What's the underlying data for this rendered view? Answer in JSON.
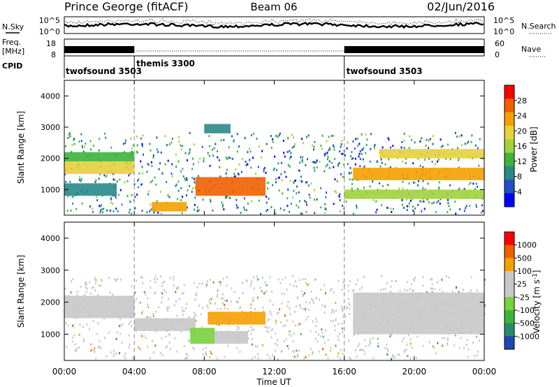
{
  "header": {
    "station": "Prince George (fitACF)",
    "beam": "Beam 06",
    "date": "02/Jun/2016"
  },
  "summary_panels": {
    "nsky": {
      "label": "N.Sky",
      "ticks": [
        "10^5",
        "10^0"
      ]
    },
    "nsearch": {
      "label": "N.Search",
      "ticks": [
        "10^5",
        "10^0"
      ]
    },
    "freq": {
      "label_line1": "Freq.",
      "label_line2": "[MHz]",
      "ticks": [
        "18",
        "8"
      ]
    },
    "nave": {
      "label": "Nave",
      "ticks": [
        "60",
        "0"
      ]
    },
    "cpid": {
      "label": "CPID",
      "segments": [
        {
          "name": "twofsound 3503",
          "start_hour": 0,
          "end_hour": 4
        },
        {
          "name": "themis 3300",
          "start_hour": 4,
          "end_hour": 16
        },
        {
          "name": "twofsound 3503",
          "start_hour": 16,
          "end_hour": 24
        }
      ]
    }
  },
  "time_axis": {
    "label": "Time UT",
    "range_hours": [
      0,
      24
    ],
    "tick_hours": [
      0,
      4,
      8,
      12,
      16,
      20,
      24
    ],
    "tick_labels": [
      "00:00",
      "04:00",
      "08:00",
      "12:00",
      "16:00",
      "20:00",
      "00:00"
    ]
  },
  "chart_data": [
    {
      "type": "heatmap",
      "panel": "power",
      "ylabel": "Slant Range [km]",
      "ylim": [
        180,
        4500
      ],
      "yticks": [
        1000,
        2000,
        3000,
        4000
      ],
      "colorbar": {
        "label": "Power [dB]",
        "range": [
          0,
          32
        ],
        "ticks": [
          4,
          8,
          12,
          16,
          20,
          24,
          28
        ],
        "colors": [
          "#0000ff",
          "#2050c8",
          "#2a8a8a",
          "#3cb43c",
          "#a0d23c",
          "#e6d23c",
          "#f5a000",
          "#f06000",
          "#ff0000"
        ]
      },
      "bands": [
        {
          "start_hour": 0.0,
          "end_hour": 4.0,
          "range_min": 1900,
          "range_max": 2200,
          "power_db": 12
        },
        {
          "start_hour": 0.0,
          "end_hour": 4.0,
          "range_min": 1500,
          "range_max": 1900,
          "power_db": 18
        },
        {
          "start_hour": 0.0,
          "end_hour": 3.0,
          "range_min": 800,
          "range_max": 1200,
          "power_db": 8
        },
        {
          "start_hour": 5.0,
          "end_hour": 7.0,
          "range_min": 300,
          "range_max": 600,
          "power_db": 24
        },
        {
          "start_hour": 7.5,
          "end_hour": 11.5,
          "range_min": 800,
          "range_max": 1400,
          "power_db": 28
        },
        {
          "start_hour": 8.0,
          "end_hour": 9.5,
          "range_min": 2800,
          "range_max": 3100,
          "power_db": 10
        },
        {
          "start_hour": 16.5,
          "end_hour": 24.0,
          "range_min": 1300,
          "range_max": 1700,
          "power_db": 22
        },
        {
          "start_hour": 18.0,
          "end_hour": 24.0,
          "range_min": 2000,
          "range_max": 2300,
          "power_db": 20
        },
        {
          "start_hour": 16.0,
          "end_hour": 24.0,
          "range_min": 700,
          "range_max": 1000,
          "power_db": 16
        }
      ]
    },
    {
      "type": "heatmap",
      "panel": "velocity",
      "ylabel": "Slant Range [km]",
      "ylim": [
        180,
        4500
      ],
      "yticks": [
        1000,
        2000,
        3000,
        4000
      ],
      "colorbar": {
        "label": "Velocity [m s^-1]",
        "range": [
          -1200,
          1200
        ],
        "tick_labels": [
          "1000",
          "500",
          "100",
          "25",
          "-25",
          "-100",
          "-500",
          "-1000"
        ],
        "colors": [
          "#1e46b4",
          "#2a8a6e",
          "#3cb43c",
          "#78d23c",
          "#c8c8c8",
          "#c8c8c8",
          "#f5a000",
          "#f06000",
          "#ff0000"
        ]
      },
      "bands": [
        {
          "start_hour": 0.0,
          "end_hour": 4.0,
          "range_min": 1500,
          "range_max": 2200,
          "velocity": 0
        },
        {
          "start_hour": 4.0,
          "end_hour": 7.5,
          "range_min": 1100,
          "range_max": 1500,
          "velocity": 0
        },
        {
          "start_hour": 7.2,
          "end_hour": 8.6,
          "range_min": 700,
          "range_max": 1200,
          "velocity": -300
        },
        {
          "start_hour": 8.6,
          "end_hour": 10.5,
          "range_min": 700,
          "range_max": 1100,
          "velocity": 80
        },
        {
          "start_hour": 8.2,
          "end_hour": 11.5,
          "range_min": 1300,
          "range_max": 1700,
          "velocity": 600
        },
        {
          "start_hour": 16.5,
          "end_hour": 24.0,
          "range_min": 1000,
          "range_max": 2300,
          "velocity": 0
        }
      ]
    }
  ]
}
